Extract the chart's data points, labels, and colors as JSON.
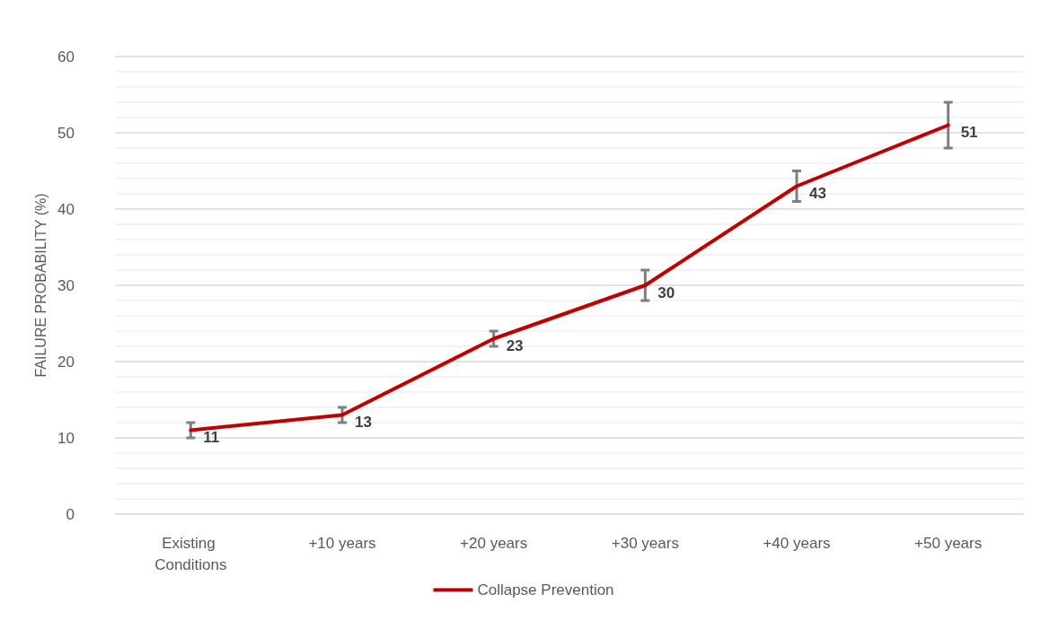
{
  "chart_data": {
    "type": "line",
    "ylabel": "FAILURE PROBABILITY (%)",
    "categories": [
      "Existing Conditions",
      "+10 years",
      "+20 years",
      "+30 years",
      "+40 years",
      "+50 years"
    ],
    "series": [
      {
        "name": "Collapse Prevention",
        "color": "#c00000",
        "values": [
          11,
          13,
          23,
          30,
          43,
          51
        ],
        "errors": [
          1,
          1,
          1,
          2,
          2,
          3
        ]
      }
    ],
    "ylim": [
      0,
      60
    ],
    "yticks": [
      0,
      10,
      20,
      30,
      40,
      50,
      60
    ],
    "grid": true,
    "legend": "bottom",
    "data_labels": true,
    "marker": "none",
    "line_style": "solid"
  }
}
